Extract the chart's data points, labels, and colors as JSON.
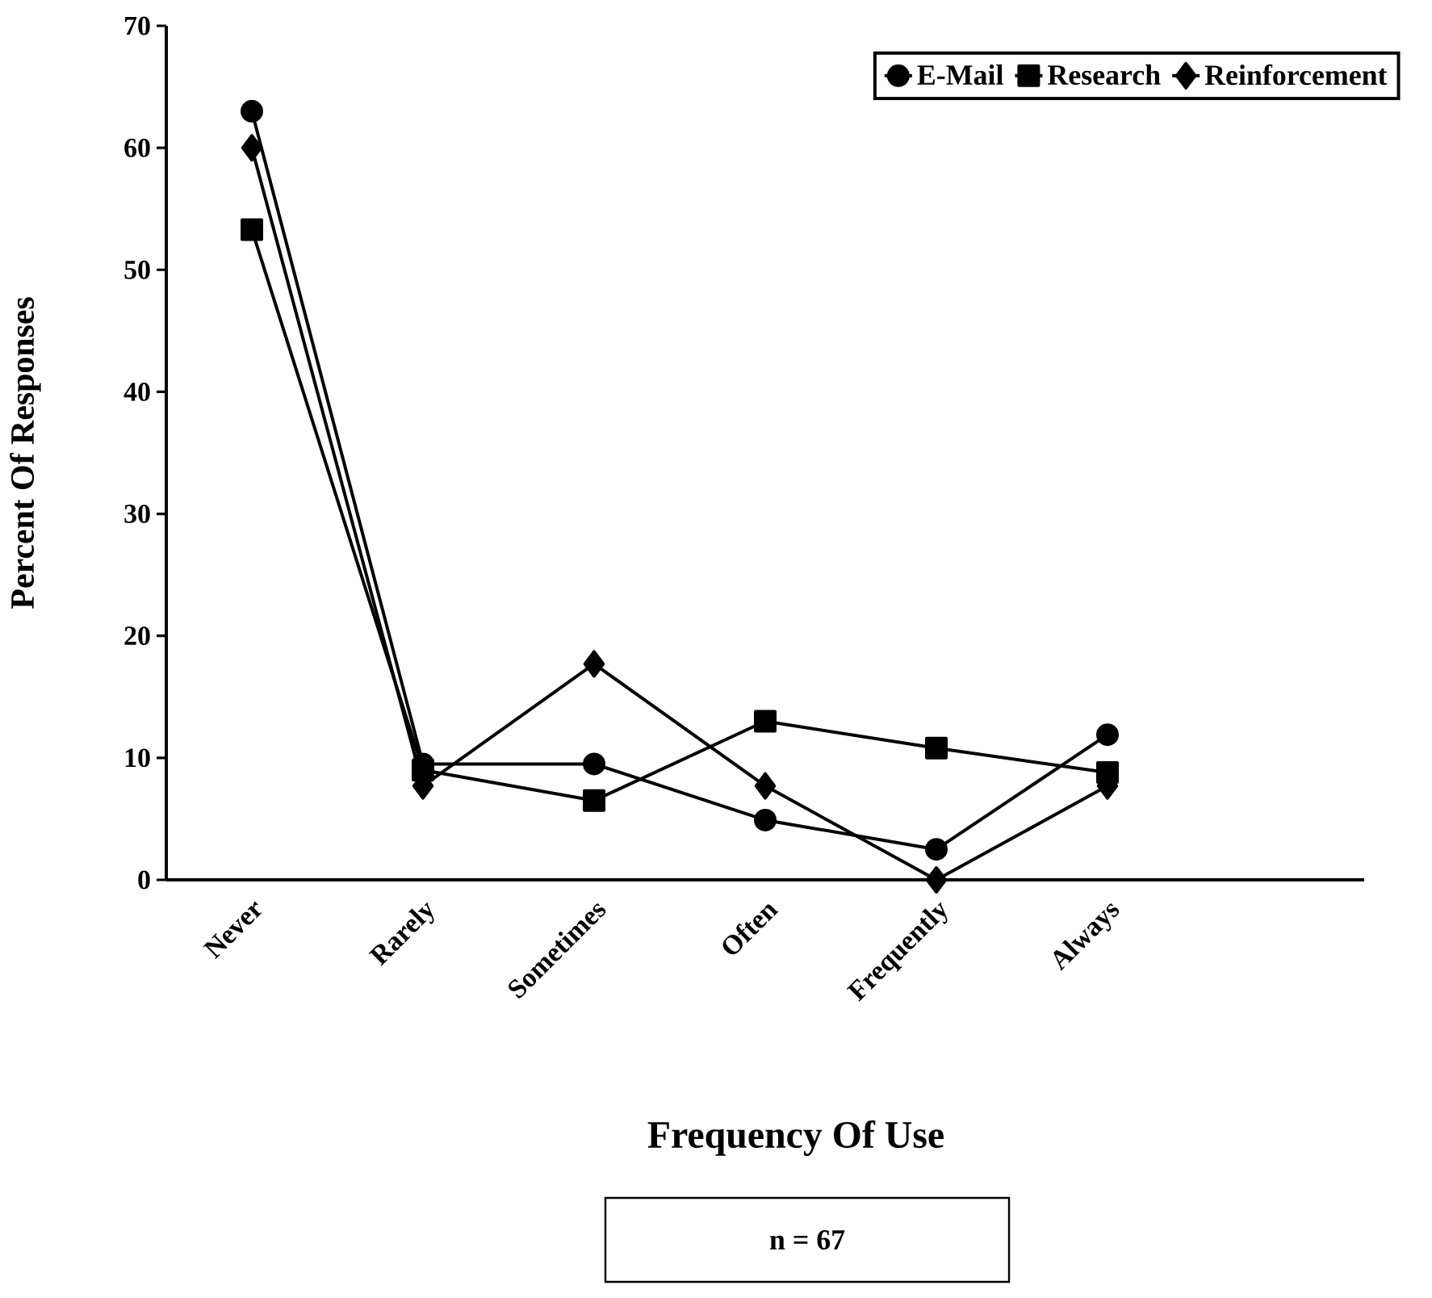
{
  "chart_data": {
    "type": "line",
    "categories": [
      "Never",
      "Rarely",
      "Sometimes",
      "Often",
      "Frequently",
      "Always",
      null
    ],
    "series": [
      {
        "name": "E-Mail",
        "color": "#000000",
        "marker": "circle",
        "values": [
          63.0,
          9.5,
          9.5,
          4.9,
          2.5,
          11.9,
          null
        ]
      },
      {
        "name": "Research",
        "color": "#000000",
        "marker": "square",
        "values": [
          53.3,
          9.0,
          6.5,
          13.0,
          10.8,
          8.8,
          null
        ]
      },
      {
        "name": "Reinforcement",
        "color": "#000000",
        "marker": "diamond",
        "values": [
          60.0,
          7.7,
          17.7,
          7.7,
          0,
          7.7,
          null
        ]
      }
    ],
    "ylim": [
      0,
      70
    ],
    "yticks": [
      0,
      10,
      20,
      30,
      40,
      50,
      60,
      70
    ],
    "xlabel": "Frequency Of Use",
    "ylabel": "Percent Of Responses",
    "annotations": [
      "n = 67"
    ],
    "legend": "top right",
    "grid": false,
    "line_style": "solid"
  }
}
